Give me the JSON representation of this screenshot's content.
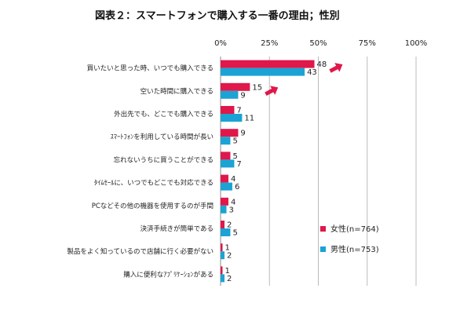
{
  "chart_data": {
    "type": "bar",
    "orientation": "horizontal",
    "title": "図表２：スマートフォンで購入する一番の理由；性別",
    "xlim": [
      0,
      100
    ],
    "x_ticks": [
      "0%",
      "25%",
      "50%",
      "75%",
      "100%"
    ],
    "categories": [
      "買いたいと思った時、いつでも購入できる",
      "空いた時間に購入できる",
      "外出先でも、どこでも購入できる",
      "ｽﾏｰﾄﾌｫﾝを利用している時間が長い",
      "忘れないうちに買うことができる",
      "ﾀｲﾑｾｰﾙに、いつでもどこでも対応できる",
      "PCなどその他の機器を使用するのが手間",
      "決済手続きが簡単である",
      "製品をよく知っているので店舗に行く必要がない",
      "購入に便利なｱﾌﾟﾘｹｰｼｮﾝがある"
    ],
    "series": [
      {
        "name": "女性(n=764)",
        "color": "#e0174a",
        "values": [
          48,
          15,
          7,
          9,
          5,
          4,
          4,
          2,
          1,
          1
        ]
      },
      {
        "name": "男性(n=753)",
        "color": "#1aa3d4",
        "values": [
          43,
          9,
          11,
          5,
          7,
          6,
          3,
          5,
          2,
          2
        ]
      }
    ],
    "highlight_arrows": [
      0,
      1
    ],
    "arrow_color": "#e0174a",
    "grid": true,
    "grid_color": "#bbbbbb",
    "legend_position": "right"
  }
}
